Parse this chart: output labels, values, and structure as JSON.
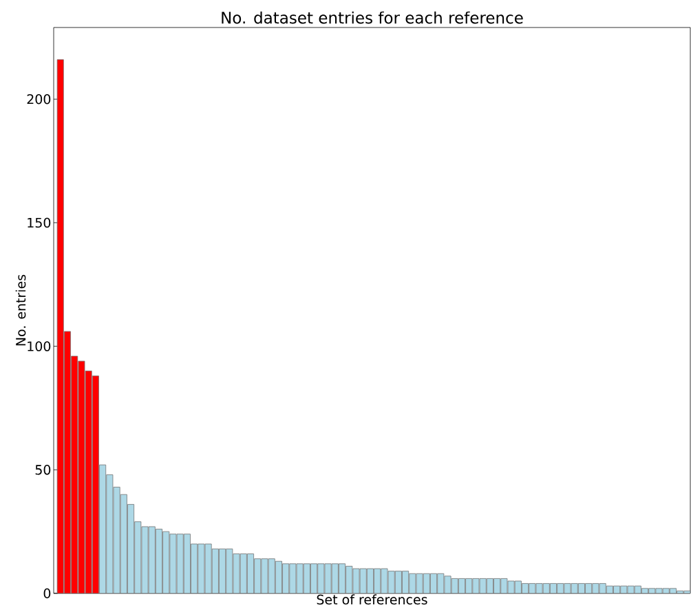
{
  "chart_data": {
    "type": "bar",
    "title": "No. dataset entries for each reference",
    "xlabel": "Set of references",
    "ylabel": "No. entries",
    "categories": [
      null,
      null,
      null,
      null,
      null,
      null,
      null,
      null,
      null,
      null,
      null,
      null,
      null,
      null,
      null,
      null,
      null,
      null,
      null,
      null,
      null,
      null,
      null,
      null,
      null,
      null,
      null,
      null,
      null,
      null,
      null,
      null,
      null,
      null,
      null,
      null,
      null,
      null,
      null,
      null,
      null,
      null,
      null,
      null,
      null,
      null,
      null,
      null,
      null,
      null,
      null,
      null,
      null,
      null,
      null,
      null,
      null,
      null,
      null,
      null,
      null,
      null,
      null,
      null,
      null,
      null,
      null,
      null,
      null,
      null,
      null,
      null,
      null,
      null,
      null,
      null,
      null,
      null,
      null,
      null,
      null,
      null,
      null,
      null,
      null,
      null,
      null,
      null,
      null,
      null
    ],
    "values": [
      216,
      106,
      96,
      94,
      90,
      88,
      52,
      48,
      43,
      40,
      36,
      29,
      27,
      27,
      26,
      25,
      24,
      24,
      24,
      20,
      20,
      20,
      18,
      18,
      18,
      16,
      16,
      16,
      14,
      14,
      14,
      13,
      12,
      12,
      12,
      12,
      12,
      12,
      12,
      12,
      12,
      11,
      10,
      10,
      10,
      10,
      10,
      9,
      9,
      9,
      8,
      8,
      8,
      8,
      8,
      7,
      6,
      6,
      6,
      6,
      6,
      6,
      6,
      6,
      5,
      5,
      4,
      4,
      4,
      4,
      4,
      4,
      4,
      4,
      4,
      4,
      4,
      4,
      3,
      3,
      3,
      3,
      3,
      2,
      2,
      2,
      2,
      2,
      1,
      1
    ],
    "colors": [
      "#ff0000",
      "#ff0000",
      "#ff0000",
      "#ff0000",
      "#ff0000",
      "#ff0000",
      "#add8e6",
      "#add8e6",
      "#add8e6",
      "#add8e6",
      "#add8e6",
      "#add8e6",
      "#add8e6",
      "#add8e6",
      "#add8e6",
      "#add8e6",
      "#add8e6",
      "#add8e6",
      "#add8e6",
      "#add8e6",
      "#add8e6",
      "#add8e6",
      "#add8e6",
      "#add8e6",
      "#add8e6",
      "#add8e6",
      "#add8e6",
      "#add8e6",
      "#add8e6",
      "#add8e6",
      "#add8e6",
      "#add8e6",
      "#add8e6",
      "#add8e6",
      "#add8e6",
      "#add8e6",
      "#add8e6",
      "#add8e6",
      "#add8e6",
      "#add8e6",
      "#add8e6",
      "#add8e6",
      "#add8e6",
      "#add8e6",
      "#add8e6",
      "#add8e6",
      "#add8e6",
      "#add8e6",
      "#add8e6",
      "#add8e6",
      "#add8e6",
      "#add8e6",
      "#add8e6",
      "#add8e6",
      "#add8e6",
      "#add8e6",
      "#add8e6",
      "#add8e6",
      "#add8e6",
      "#add8e6",
      "#add8e6",
      "#add8e6",
      "#add8e6",
      "#add8e6",
      "#add8e6",
      "#add8e6",
      "#add8e6",
      "#add8e6",
      "#add8e6",
      "#add8e6",
      "#add8e6",
      "#add8e6",
      "#add8e6",
      "#add8e6",
      "#add8e6",
      "#add8e6",
      "#add8e6",
      "#add8e6",
      "#add8e6",
      "#add8e6",
      "#add8e6",
      "#add8e6",
      "#add8e6",
      "#add8e6",
      "#add8e6",
      "#add8e6",
      "#add8e6",
      "#add8e6",
      "#add8e6",
      "#add8e6"
    ],
    "ylim": [
      0,
      229
    ],
    "yticks": [
      0,
      50,
      100,
      150,
      200
    ],
    "grid": false,
    "tick_labels": "y"
  }
}
